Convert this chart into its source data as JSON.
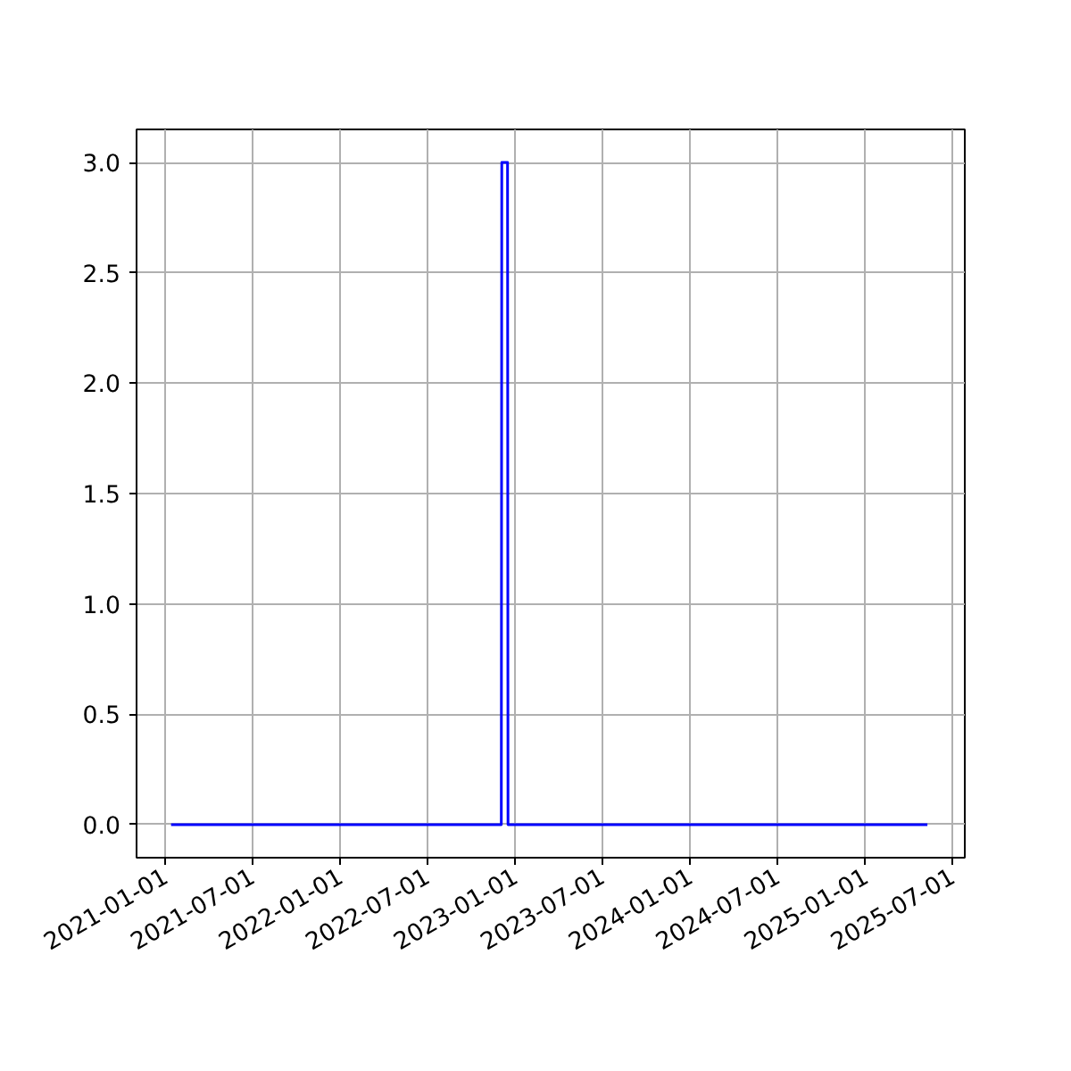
{
  "chart_data": {
    "type": "line",
    "x": [
      "2021-01-13",
      "2022-12-03",
      "2022-12-04",
      "2022-12-16",
      "2022-12-17",
      "2025-05-10"
    ],
    "series": [
      {
        "color": "#0000ff",
        "values": [
          0,
          0,
          3,
          3,
          0,
          0
        ]
      }
    ],
    "xlim": [
      "2020-11-02",
      "2025-07-27"
    ],
    "xticks": [
      {
        "value": "2021-01-01",
        "label": "2021-01-01"
      },
      {
        "value": "2021-07-01",
        "label": "2021-07-01"
      },
      {
        "value": "2022-01-01",
        "label": "2022-01-01"
      },
      {
        "value": "2022-07-01",
        "label": "2022-07-01"
      },
      {
        "value": "2023-01-01",
        "label": "2023-01-01"
      },
      {
        "value": "2023-07-01",
        "label": "2023-07-01"
      },
      {
        "value": "2024-01-01",
        "label": "2024-01-01"
      },
      {
        "value": "2024-07-01",
        "label": "2024-07-01"
      },
      {
        "value": "2025-01-01",
        "label": "2025-01-01"
      },
      {
        "value": "2025-07-01",
        "label": "2025-07-01"
      }
    ],
    "ylim": [
      -0.15,
      3.15
    ],
    "yticks": [
      {
        "value": 0,
        "label": "0.0"
      },
      {
        "value": 0.5,
        "label": "0.5"
      },
      {
        "value": 1,
        "label": "1.0"
      },
      {
        "value": 1.5,
        "label": "1.5"
      },
      {
        "value": 2,
        "label": "2.0"
      },
      {
        "value": 2.5,
        "label": "2.5"
      },
      {
        "value": 3,
        "label": "3.0"
      }
    ],
    "grid": true,
    "line_style": "solid"
  }
}
